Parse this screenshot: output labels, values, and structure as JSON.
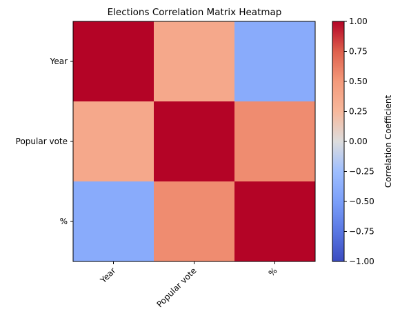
{
  "chart_data": {
    "type": "heatmap",
    "title": "Elections Correlation Matrix Heatmap",
    "xlabel": "",
    "ylabel": "",
    "row_labels": [
      "Year",
      "Popular vote",
      "%"
    ],
    "col_labels": [
      "Year",
      "Popular vote",
      "%"
    ],
    "values": [
      [
        1.0,
        0.38,
        -0.4
      ],
      [
        0.38,
        1.0,
        0.56
      ],
      [
        -0.4,
        0.56,
        1.0
      ]
    ],
    "colormap": "coolwarm",
    "vmin": -1.0,
    "vmax": 1.0,
    "colorbar": {
      "label": "Correlation Coefficient",
      "ticks": [
        "1.00",
        "0.75",
        "0.50",
        "0.25",
        "0.00",
        "−0.25",
        "−0.50",
        "−0.75",
        "−1.00"
      ],
      "tick_values": [
        1.0,
        0.75,
        0.5,
        0.25,
        0.0,
        -0.25,
        -0.5,
        -0.75,
        -1.0
      ]
    },
    "x_tick_rotation": "45 degrees",
    "grid": false
  }
}
